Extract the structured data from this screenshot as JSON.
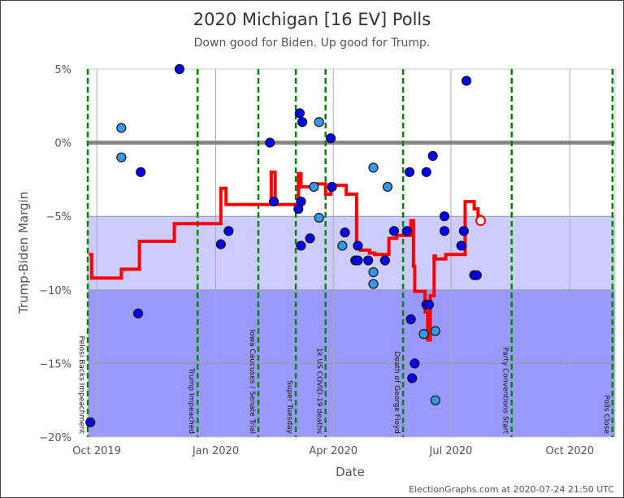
{
  "chart_data": {
    "type": "scatter",
    "title": "2020 Michigan [16 EV] Polls",
    "subtitle": "Down good for Biden. Up good for Trump.",
    "xlabel": "Date",
    "ylabel": "Trump-Biden Margin",
    "xlim": [
      "2019-09-24",
      "2020-11-05"
    ],
    "ylim": [
      -20,
      5
    ],
    "x_ticks": [
      {
        "date": "2019-10-01",
        "label": "Oct 2019"
      },
      {
        "date": "2020-01-01",
        "label": "Jan 2020"
      },
      {
        "date": "2020-04-01",
        "label": "Apr 2020"
      },
      {
        "date": "2020-07-01",
        "label": "Jul 2020"
      },
      {
        "date": "2020-10-01",
        "label": "Oct 2020"
      }
    ],
    "y_ticks": [
      {
        "value": 5,
        "label": "5%"
      },
      {
        "value": 0,
        "label": "0%"
      },
      {
        "value": -5,
        "label": "−5%"
      },
      {
        "value": -10,
        "label": "−10%"
      },
      {
        "value": -15,
        "label": "−15%"
      },
      {
        "value": -20,
        "label": "−20%"
      }
    ],
    "grid": true,
    "bands": [
      {
        "from": -10,
        "to": -5,
        "color": "#ccccff"
      },
      {
        "from": -20,
        "to": -10,
        "color": "#9999ff"
      }
    ],
    "colors": {
      "poll_dark": "#0000ff",
      "poll_light": "#3399ee",
      "average": "#ff0000",
      "events": "#008800",
      "zero_line": "#777777"
    },
    "events": [
      {
        "date": "2019-09-24",
        "label": "Pelosi Backs Impeachment"
      },
      {
        "date": "2019-12-18",
        "label": "Trump Impeached"
      },
      {
        "date": "2020-02-03",
        "label": "Iowa Caucuses / Senate Trial"
      },
      {
        "date": "2020-03-03",
        "label": "Super Tuesday"
      },
      {
        "date": "2020-03-26",
        "label": "1k US COVID-19 deaths"
      },
      {
        "date": "2020-05-25",
        "label": "Death of George Floyd"
      },
      {
        "date": "2020-08-17",
        "label": "Party Conventions Start"
      },
      {
        "date": "2020-11-03",
        "label": "Polls Close"
      }
    ],
    "polls": [
      [
        "2019-09-26",
        -19,
        "dark"
      ],
      [
        "2019-10-20",
        1,
        "light"
      ],
      [
        "2019-10-20",
        -1,
        "light"
      ],
      [
        "2019-11-04",
        -2,
        "dark"
      ],
      [
        "2019-11-02",
        -11.6,
        "dark"
      ],
      [
        "2019-12-04",
        5,
        "dark"
      ],
      [
        "2020-01-05",
        -6.9,
        "dark"
      ],
      [
        "2020-01-11",
        -6,
        "dark"
      ],
      [
        "2020-02-12",
        0,
        "dark"
      ],
      [
        "2020-02-15",
        -4,
        "dark"
      ],
      [
        "2020-03-06",
        2,
        "dark"
      ],
      [
        "2020-03-08",
        1.4,
        "dark"
      ],
      [
        "2020-03-05",
        -4.5,
        "dark"
      ],
      [
        "2020-03-07",
        -4,
        "dark"
      ],
      [
        "2020-03-07",
        -7,
        "dark"
      ],
      [
        "2020-03-14",
        -6.5,
        "dark"
      ],
      [
        "2020-03-17",
        -3,
        "light"
      ],
      [
        "2020-03-21",
        1.4,
        "light"
      ],
      [
        "2020-03-21",
        -5.1,
        "light"
      ],
      [
        "2020-03-30",
        0.3,
        "dark"
      ],
      [
        "2020-03-31",
        -3,
        "dark"
      ],
      [
        "2020-04-08",
        -7,
        "light"
      ],
      [
        "2020-04-10",
        -6.1,
        "dark"
      ],
      [
        "2020-04-18",
        -8,
        "dark"
      ],
      [
        "2020-04-20",
        -8,
        "dark"
      ],
      [
        "2020-04-20",
        -7,
        "dark"
      ],
      [
        "2020-04-28",
        -8,
        "dark"
      ],
      [
        "2020-05-02",
        -8.8,
        "light"
      ],
      [
        "2020-05-02",
        -9.6,
        "light"
      ],
      [
        "2020-05-02",
        -1.7,
        "light"
      ],
      [
        "2020-05-13",
        -3,
        "light"
      ],
      [
        "2020-05-11",
        -8,
        "dark"
      ],
      [
        "2020-05-18",
        -6,
        "dark"
      ],
      [
        "2020-05-28",
        -6,
        "dark"
      ],
      [
        "2020-05-30",
        -2,
        "dark"
      ],
      [
        "2020-05-31",
        -12,
        "dark"
      ],
      [
        "2020-06-03",
        -15,
        "dark"
      ],
      [
        "2020-06-01",
        -16,
        "dark"
      ],
      [
        "2020-06-10",
        -13,
        "light"
      ],
      [
        "2020-06-12",
        -11,
        "dark"
      ],
      [
        "2020-06-14",
        -11,
        "dark"
      ],
      [
        "2020-06-12",
        -2,
        "dark"
      ],
      [
        "2020-06-17",
        -0.9,
        "dark"
      ],
      [
        "2020-06-19",
        -12.8,
        "light"
      ],
      [
        "2020-06-19",
        -17.5,
        "light"
      ],
      [
        "2020-06-26",
        -5,
        "dark"
      ],
      [
        "2020-06-26",
        -6,
        "dark"
      ],
      [
        "2020-07-09",
        -7,
        "dark"
      ],
      [
        "2020-07-11",
        -6,
        "dark"
      ],
      [
        "2020-07-13",
        4.2,
        "dark"
      ],
      [
        "2020-07-19",
        -9,
        "dark"
      ],
      [
        "2020-07-21",
        -9,
        "dark"
      ]
    ],
    "average": [
      [
        "2019-09-25",
        -7.6
      ],
      [
        "2019-09-27",
        -9.2
      ],
      [
        "2019-10-20",
        -8.6
      ],
      [
        "2019-11-03",
        -6.7
      ],
      [
        "2019-11-30",
        -5.5
      ],
      [
        "2020-01-05",
        -3.1
      ],
      [
        "2020-01-09",
        -4.2
      ],
      [
        "2020-02-13",
        -2
      ],
      [
        "2020-02-16",
        -4.2
      ],
      [
        "2020-03-05",
        -2.1
      ],
      [
        "2020-03-07",
        -3
      ],
      [
        "2020-03-16",
        -2.8
      ],
      [
        "2020-03-26",
        -3.5
      ],
      [
        "2020-03-30",
        -2.9
      ],
      [
        "2020-04-11",
        -3.5
      ],
      [
        "2020-04-19",
        -7.2
      ],
      [
        "2020-04-22",
        -7.3
      ],
      [
        "2020-04-29",
        -7.5
      ],
      [
        "2020-05-03",
        -7.6
      ],
      [
        "2020-05-14",
        -6.5
      ],
      [
        "2020-05-20",
        -6.3
      ],
      [
        "2020-05-31",
        -5.3
      ],
      [
        "2020-06-02",
        -8.4
      ],
      [
        "2020-06-03",
        -10.1
      ],
      [
        "2020-06-11",
        -11.5
      ],
      [
        "2020-06-13",
        -13.4
      ],
      [
        "2020-06-15",
        -10.4
      ],
      [
        "2020-06-18",
        -7.7
      ],
      [
        "2020-06-19",
        -7.9
      ],
      [
        "2020-06-27",
        -7.6
      ],
      [
        "2020-07-12",
        -4
      ],
      [
        "2020-07-19",
        -4.5
      ],
      [
        "2020-07-22",
        -5
      ],
      [
        "2020-07-24",
        -5.3
      ]
    ],
    "current_average": {
      "date": "2020-07-24",
      "value": -5.3
    }
  },
  "footer": "ElectionGraphs.com at 2020-07-24 21:50 UTC"
}
